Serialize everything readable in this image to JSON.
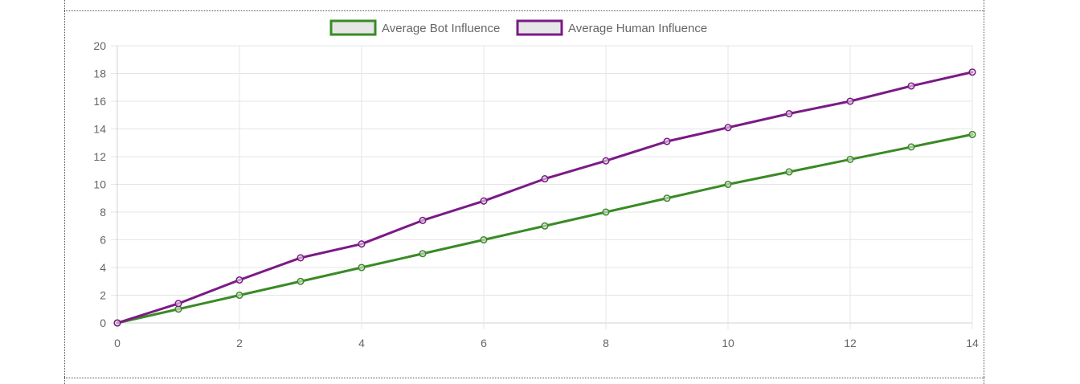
{
  "chart_data": {
    "type": "line",
    "title": "",
    "xlabel": "",
    "ylabel": "",
    "x": [
      0,
      1,
      2,
      3,
      4,
      5,
      6,
      7,
      8,
      9,
      10,
      11,
      12,
      13,
      14
    ],
    "xlim": [
      0,
      14
    ],
    "ylim": [
      0,
      20
    ],
    "x_ticks": [
      "0",
      "2",
      "4",
      "6",
      "8",
      "10",
      "12",
      "14"
    ],
    "y_ticks": [
      "0",
      "2",
      "4",
      "6",
      "8",
      "10",
      "12",
      "14",
      "16",
      "18",
      "20"
    ],
    "grid": true,
    "legend_position": "top-center",
    "series": [
      {
        "name": "Average Bot Influence",
        "color": "#3a8a26",
        "values": [
          0,
          1.0,
          2.0,
          3.0,
          4.0,
          5.0,
          6.0,
          7.0,
          8.0,
          9.0,
          10.0,
          10.9,
          11.8,
          12.7,
          13.6
        ]
      },
      {
        "name": "Average Human Influence",
        "color": "#7b1a86",
        "values": [
          0,
          1.4,
          3.1,
          4.7,
          5.7,
          7.4,
          8.8,
          10.4,
          11.7,
          13.1,
          14.1,
          15.1,
          16.0,
          17.1,
          18.1
        ]
      }
    ]
  }
}
